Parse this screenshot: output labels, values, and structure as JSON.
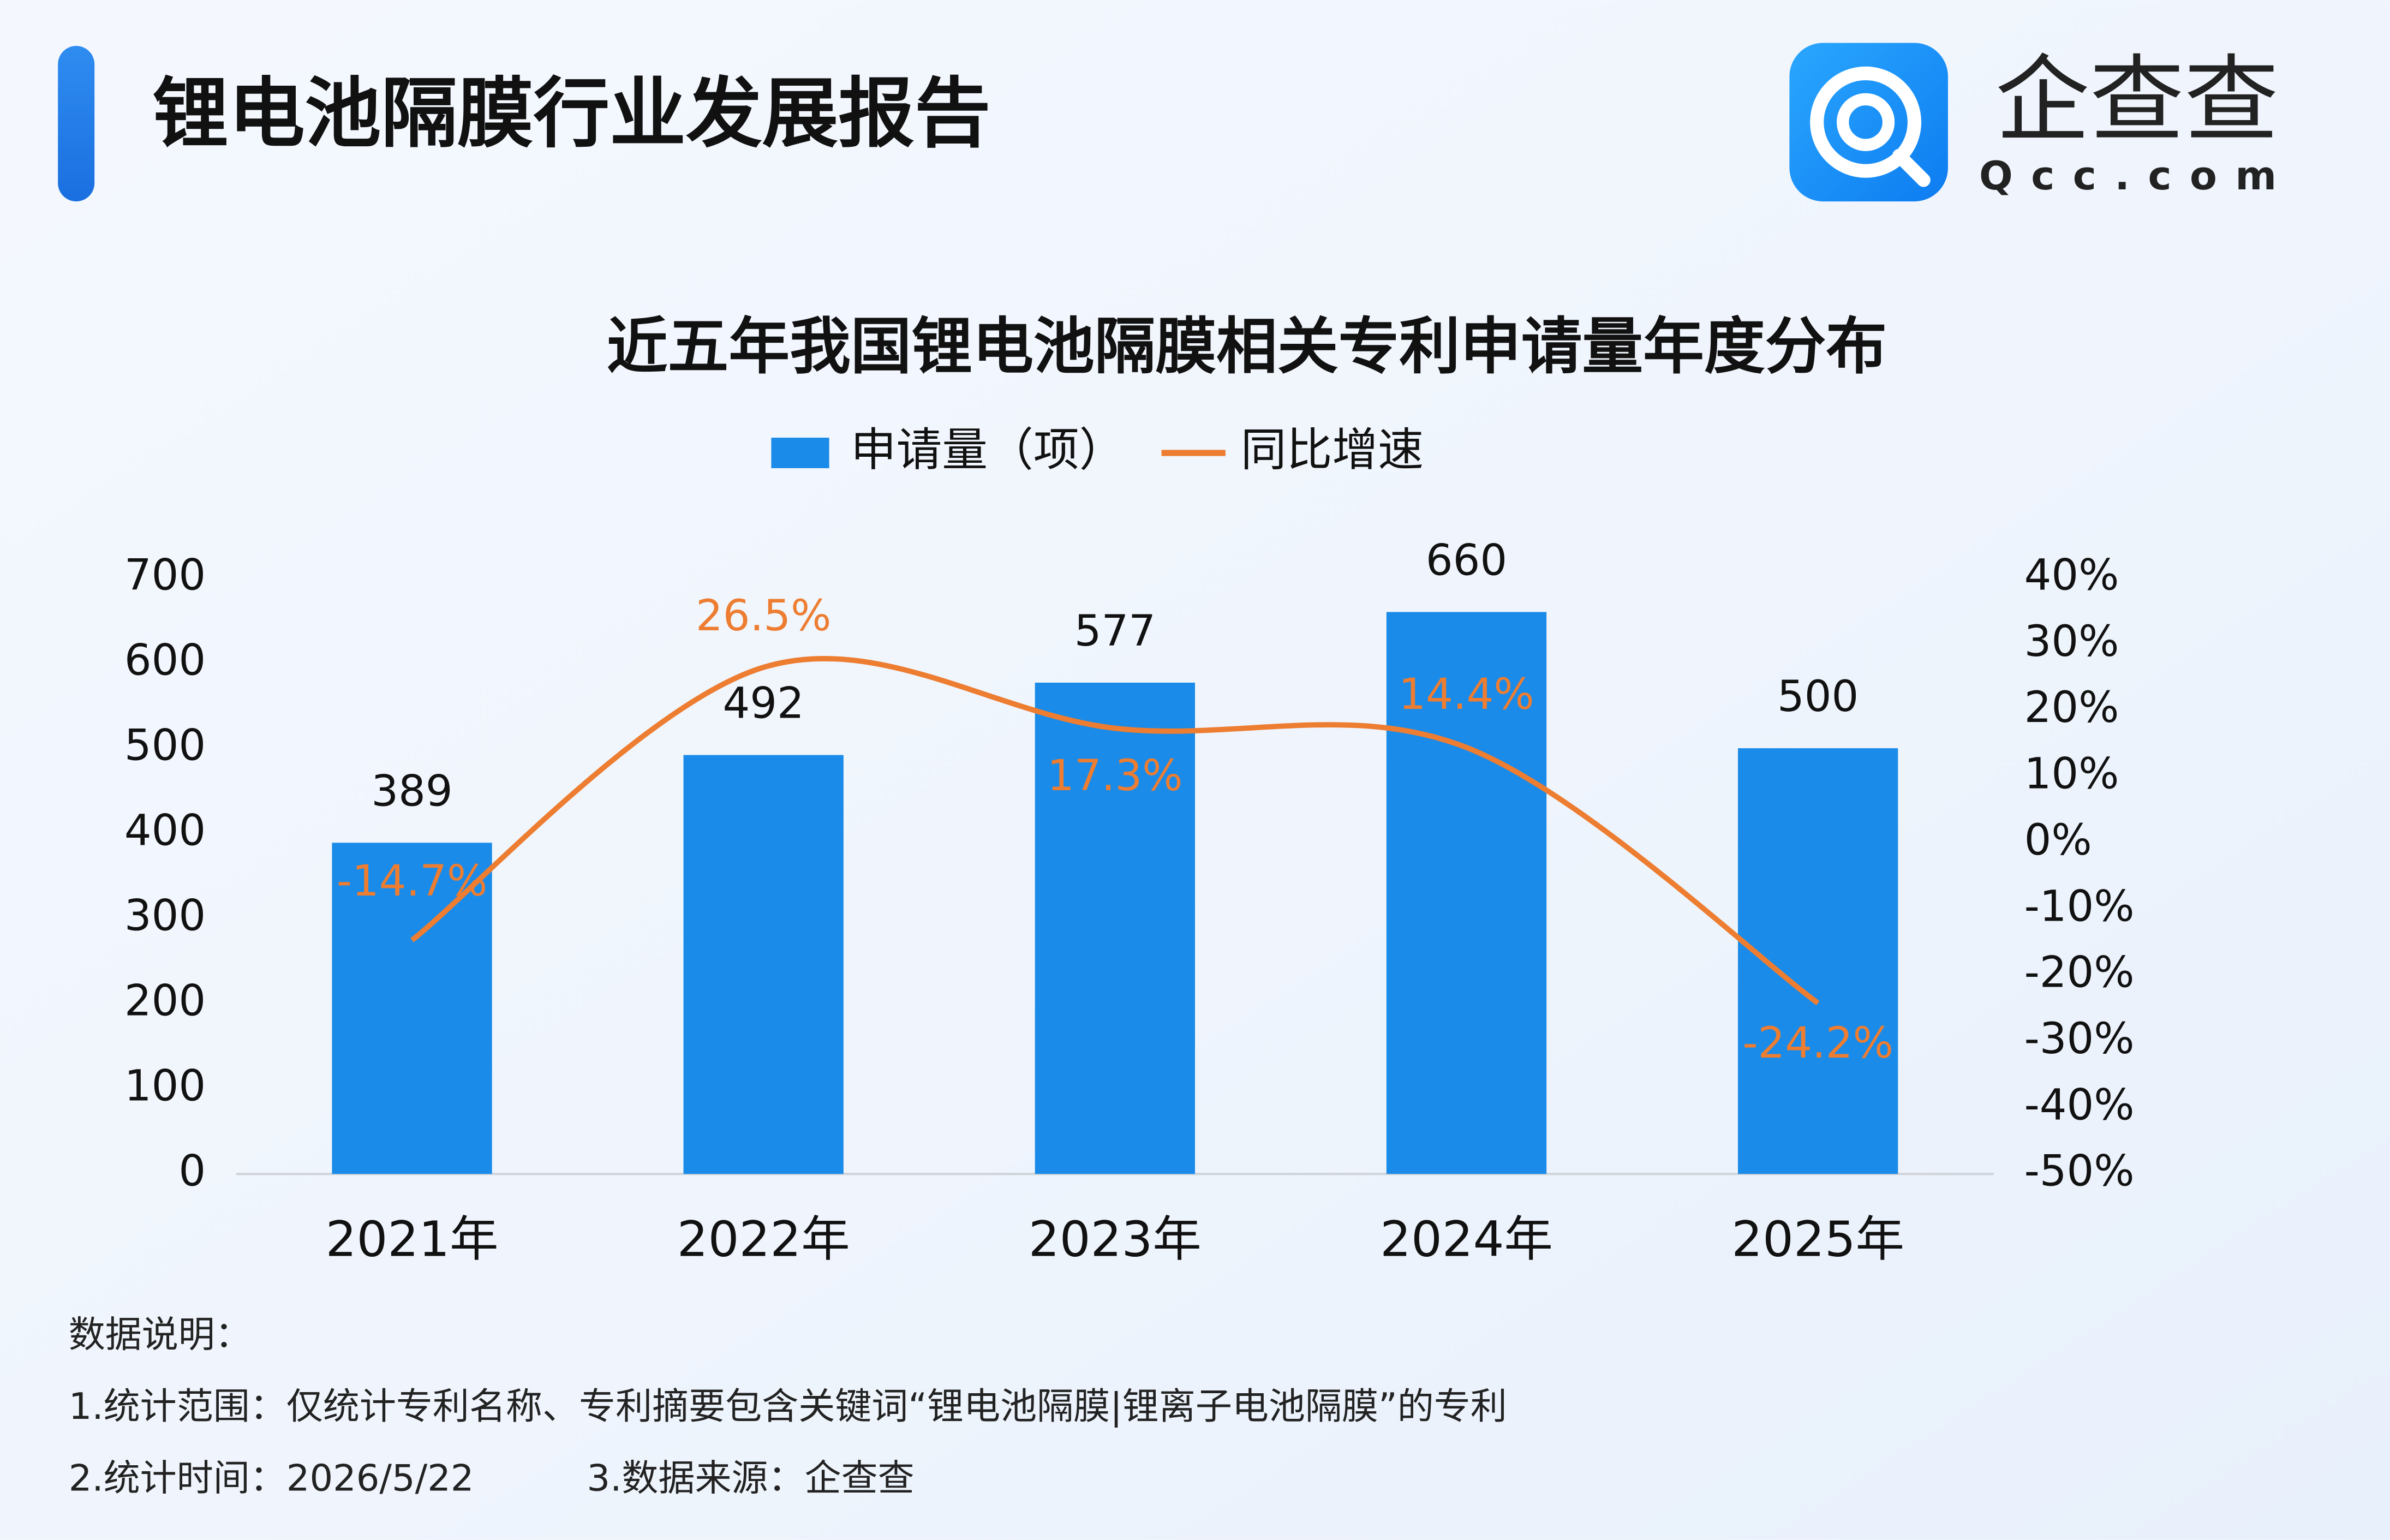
{
  "header": {
    "title": "锂电池隔膜行业发展报告",
    "logo_name": "企查查",
    "logo_domain": "Qcc.com"
  },
  "chart_data": {
    "type": "bar_line",
    "title": "近五年我国锂电池隔膜相关专利申请量年度分布",
    "categories": [
      "2021年",
      "2022年",
      "2023年",
      "2024年",
      "2025年"
    ],
    "series": [
      {
        "name": "申请量（项）",
        "type": "bar",
        "color": "#1a8be8",
        "values": [
          389,
          492,
          577,
          660,
          500
        ]
      },
      {
        "name": "同比增速",
        "type": "line",
        "axis": "y2",
        "color": "#ed7d31",
        "values": [
          -14.7,
          26.5,
          17.3,
          14.4,
          -24.2
        ],
        "value_labels": [
          "-14.7%",
          "26.5%",
          "17.3%",
          "14.4%",
          "-24.2%"
        ]
      }
    ],
    "ylim": [
      0,
      700
    ],
    "yticks": [
      0,
      100,
      200,
      300,
      400,
      500,
      600,
      700
    ],
    "y2lim": [
      -50,
      40
    ],
    "y2ticks": [
      {
        "value": -50,
        "label": "-50%"
      },
      {
        "value": -40,
        "label": "-40%"
      },
      {
        "value": -30,
        "label": "-30%"
      },
      {
        "value": -20,
        "label": "-20%"
      },
      {
        "value": -10,
        "label": "-10%"
      },
      {
        "value": 0,
        "label": "0%"
      },
      {
        "value": 10,
        "label": "10%"
      },
      {
        "value": 20,
        "label": "20%"
      },
      {
        "value": 30,
        "label": "30%"
      },
      {
        "value": 40,
        "label": "40%"
      }
    ],
    "legend": "top",
    "grid": false
  },
  "notes": [
    "数据说明：",
    "1.统计范围：仅统计专利名称、专利摘要包含关键词“锂电池隔膜|锂离子电池隔膜”的专利",
    "2.统计时间：2026/5/22",
    "3.数据来源：企查查"
  ]
}
